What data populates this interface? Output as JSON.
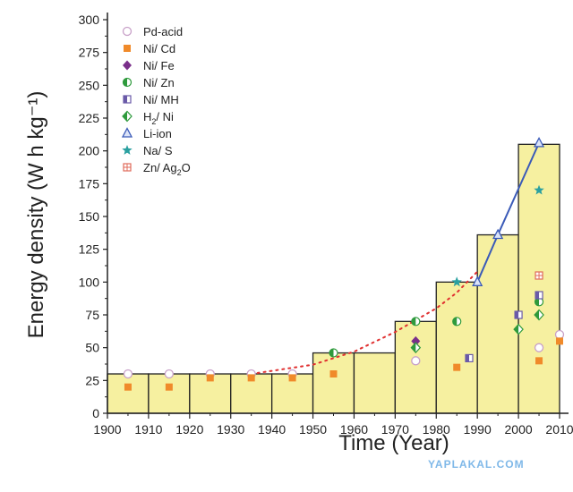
{
  "chart_data": {
    "type": "bar",
    "xlabel": "Time (Year)",
    "ylabel": "Energy density (W h kg⁻¹)",
    "xlim": [
      1900,
      2010
    ],
    "ylim": [
      0,
      300
    ],
    "xticks": [
      1900,
      1910,
      1920,
      1930,
      1940,
      1950,
      1960,
      1970,
      1980,
      1990,
      2000,
      2010
    ],
    "yticks": [
      0,
      25,
      50,
      75,
      100,
      125,
      150,
      175,
      200,
      225,
      250,
      275,
      300
    ],
    "legend_position": "top-left",
    "bars": [
      {
        "x0": 1900,
        "x1": 1910,
        "value": 30
      },
      {
        "x0": 1910,
        "x1": 1920,
        "value": 30
      },
      {
        "x0": 1920,
        "x1": 1930,
        "value": 30
      },
      {
        "x0": 1930,
        "x1": 1940,
        "value": 30
      },
      {
        "x0": 1940,
        "x1": 1950,
        "value": 30
      },
      {
        "x0": 1950,
        "x1": 1960,
        "value": 46
      },
      {
        "x0": 1960,
        "x1": 1970,
        "value": 46
      },
      {
        "x0": 1970,
        "x1": 1980,
        "value": 70
      },
      {
        "x0": 1980,
        "x1": 1990,
        "value": 100
      },
      {
        "x0": 1990,
        "x1": 2000,
        "value": 136
      },
      {
        "x0": 2000,
        "x1": 2010,
        "value": 205
      }
    ],
    "trend_curve": [
      [
        1935,
        30
      ],
      [
        1950,
        37
      ],
      [
        1960,
        47
      ],
      [
        1970,
        62
      ],
      [
        1980,
        80
      ],
      [
        1985,
        92
      ],
      [
        1990,
        108
      ]
    ],
    "series": [
      {
        "name": "Pd-acid",
        "marker": "circle-open",
        "color": "#c8a0c8",
        "points": [
          [
            1905,
            30
          ],
          [
            1915,
            30
          ],
          [
            1925,
            30
          ],
          [
            1935,
            30
          ],
          [
            1945,
            30
          ],
          [
            1975,
            40
          ],
          [
            2005,
            50
          ],
          [
            2010,
            60
          ]
        ]
      },
      {
        "name": "Ni/ Cd",
        "marker": "square",
        "color": "#f08a2a",
        "points": [
          [
            1905,
            20
          ],
          [
            1915,
            20
          ],
          [
            1925,
            27
          ],
          [
            1935,
            27
          ],
          [
            1945,
            27
          ],
          [
            1955,
            30
          ],
          [
            1985,
            35
          ],
          [
            2005,
            40
          ],
          [
            2010,
            55
          ]
        ]
      },
      {
        "name": "Ni/ Fe",
        "marker": "diamond",
        "color": "#7a2f8a",
        "points": [
          [
            1975,
            55
          ]
        ]
      },
      {
        "name": "Ni/ Zn",
        "marker": "circle-half",
        "color": "#2e9a3c",
        "points": [
          [
            1955,
            46
          ],
          [
            1975,
            70
          ],
          [
            1985,
            70
          ],
          [
            2005,
            85
          ]
        ]
      },
      {
        "name": "Ni/ MH",
        "marker": "square-half",
        "color": "#6a5aa8",
        "points": [
          [
            1988,
            42
          ],
          [
            2000,
            75
          ],
          [
            2005,
            90
          ]
        ]
      },
      {
        "name": "H₂/ Ni",
        "legend_main": "H",
        "legend_sub": "2",
        "legend_rest": "/ Ni",
        "marker": "diamond-half",
        "color": "#2e9a3c",
        "points": [
          [
            1975,
            50
          ],
          [
            2000,
            64
          ],
          [
            2005,
            75
          ]
        ]
      },
      {
        "name": "Li-ion",
        "marker": "triangle",
        "color": "#3a5ab8",
        "connect": true,
        "points": [
          [
            1990,
            100
          ],
          [
            1995,
            136
          ],
          [
            2005,
            206
          ]
        ]
      },
      {
        "name": "Na/ S",
        "marker": "star",
        "color": "#2aa0a0",
        "points": [
          [
            1985,
            100
          ],
          [
            2005,
            170
          ]
        ]
      },
      {
        "name": "Zn/ Ag₂O",
        "legend_main": "Zn/ Ag",
        "legend_sub": "2",
        "legend_rest": "O",
        "marker": "square-plus",
        "color": "#e06a5a",
        "points": [
          [
            2005,
            105
          ]
        ]
      }
    ],
    "colors": {
      "bar_fill": "#f6f0a0",
      "bar_stroke": "#222222",
      "trend": "#e03030",
      "axis": "#222222"
    }
  },
  "watermark": "YAPLAKAL.COM"
}
